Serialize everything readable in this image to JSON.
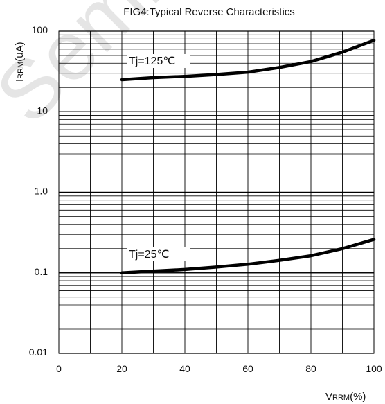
{
  "chart_data": {
    "type": "line",
    "title": "FIG4:Typical Reverse Characteristics",
    "xlabel": {
      "main": "V",
      "sub": "RRM",
      "unit": "(%)"
    },
    "ylabel": {
      "main": "I",
      "sub": "RRM",
      "unit": "(uA)"
    },
    "xlim": [
      0,
      100
    ],
    "ylim": [
      0.01,
      100
    ],
    "yscale": "log",
    "grid": true,
    "xticks": [
      "0",
      "20",
      "40",
      "60",
      "80",
      "100"
    ],
    "yticks": [
      "0.01",
      "0.1",
      "1.0",
      "10",
      "100"
    ],
    "series": [
      {
        "name": "Tj=125℃",
        "x": [
          20,
          30,
          40,
          50,
          60,
          70,
          80,
          90,
          100
        ],
        "y": [
          25,
          26.5,
          27.5,
          29,
          31,
          35.5,
          42,
          55,
          77
        ]
      },
      {
        "name": "Tj=25℃",
        "x": [
          20,
          30,
          40,
          50,
          60,
          70,
          80,
          90,
          100
        ],
        "y": [
          0.1,
          0.105,
          0.11,
          0.118,
          0.128,
          0.143,
          0.163,
          0.2,
          0.26
        ]
      }
    ],
    "line_color": "#000000",
    "watermark": "Semic"
  }
}
